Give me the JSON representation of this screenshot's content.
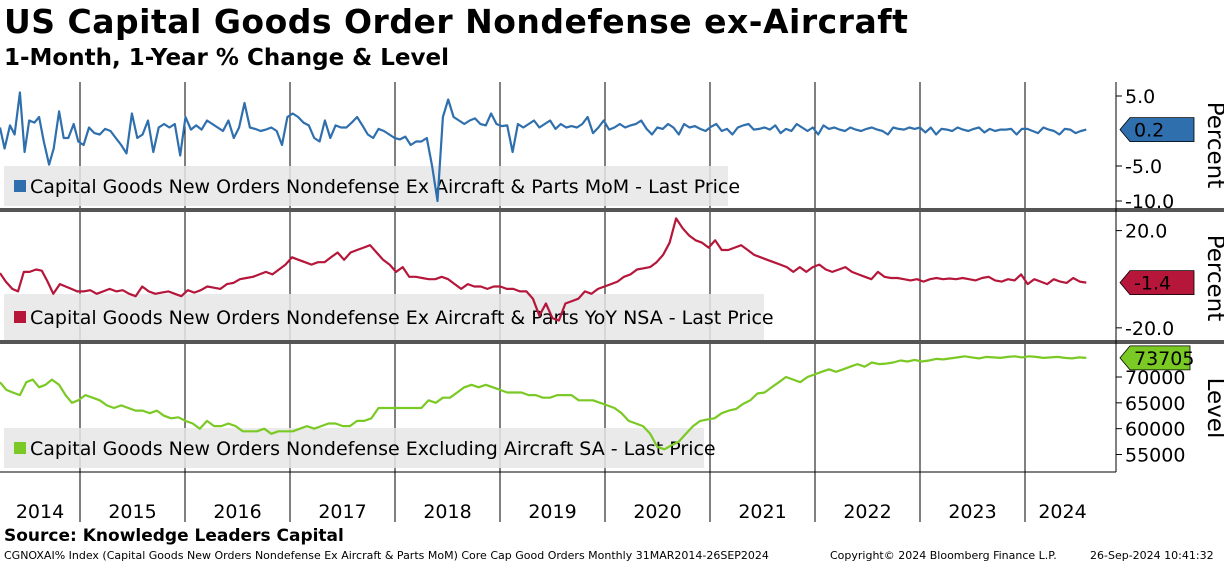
{
  "header": {
    "title": "US Capital Goods Order Nondefense ex-Aircraft",
    "subtitle": "1-Month, 1-Year % Change & Level"
  },
  "source": "Source: Knowledge Leaders Capital",
  "footer": {
    "left": "CGNOXAI% Index (Capital Goods New Orders Nondefense Ex Aircraft & Parts MoM) Core Cap Good Orders  Monthly 31MAR2014-26SEP2024",
    "middle": "Copyright© 2024 Bloomberg Finance L.P.",
    "right": "26-Sep-2024 10:41:32"
  },
  "colors": {
    "mom": "#2f6fad",
    "yoy": "#b5163a",
    "level": "#7ac924"
  },
  "chart_data": [
    {
      "type": "line",
      "name": "mom",
      "legend": "Capital Goods New Orders Nondefense Ex Aircraft & Parts MoM - Last Price",
      "ylabel": "Percent",
      "ylim": [
        -11,
        7
      ],
      "yticks": [
        "5.0",
        "-5.0",
        "-10.0"
      ],
      "ytick_values": [
        5,
        -5,
        -10
      ],
      "last_value": "0.2",
      "x_start": "2014-03",
      "x_end": "2024-08",
      "values": [
        0.5,
        -2.5,
        0.8,
        -0.5,
        5.5,
        -3.0,
        1.5,
        1.2,
        2.0,
        -1.5,
        -4.8,
        -2.5,
        2.8,
        -1.0,
        -1.0,
        1.0,
        -1.5,
        -2.0,
        0.5,
        -0.3,
        -0.5,
        0.3,
        0.0,
        -1.0,
        -2.0,
        -3.2,
        2.5,
        -1.0,
        -0.5,
        1.5,
        -3.0,
        0.5,
        1.0,
        0.5,
        1.0,
        -3.5,
        2.0,
        0.2,
        0.8,
        0.2,
        1.5,
        1.0,
        0.5,
        0.0,
        1.5,
        -1.0,
        0.5,
        4.0,
        0.5,
        0.3,
        0.0,
        0.2,
        0.5,
        0.0,
        -2.0,
        2.0,
        2.5,
        2.0,
        1.2,
        0.8,
        -1.0,
        -1.5,
        1.5,
        -1.0,
        0.8,
        0.5,
        0.5,
        1.2,
        2.0,
        0.8,
        -0.5,
        -1.0,
        0.3,
        0.0,
        -0.5,
        -1.0,
        -1.2,
        -0.8,
        -2.0,
        -1.5,
        -1.5,
        -1.0,
        -5.0,
        -10.0,
        2.0,
        4.5,
        2.0,
        1.5,
        1.0,
        1.5,
        1.8,
        1.0,
        0.8,
        2.5,
        1.0,
        0.7,
        0.8,
        -3.0,
        1.0,
        0.5,
        1.0,
        1.5,
        0.5,
        1.0,
        1.5,
        0.3,
        1.0,
        0.5,
        0.7,
        0.5,
        1.0,
        2.0,
        -0.3,
        0.5,
        1.5,
        0.2,
        0.5,
        1.0,
        0.5,
        0.8,
        1.0,
        1.5,
        0.3,
        -0.5,
        0.5,
        0.3,
        1.0,
        0.5,
        -0.5,
        1.0,
        0.5,
        0.7,
        0.3,
        0.0,
        0.6,
        1.0,
        0.0,
        0.3,
        -0.5,
        0.5,
        0.8,
        1.0,
        0.2,
        0.3,
        0.5,
        0.2,
        0.8,
        -0.3,
        0.3,
        0.0,
        1.0,
        0.5,
        0.0,
        0.5,
        -0.5,
        0.8,
        0.3,
        0.5,
        0.2,
        0.0,
        0.5,
        0.2,
        0.0,
        0.3,
        0.5,
        0.2,
        0.0,
        -0.5,
        0.5,
        0.3,
        0.2,
        0.5,
        0.3,
        0.5,
        -0.2,
        0.5,
        -0.5,
        0.3,
        0.2,
        0.0,
        0.5,
        0.2,
        0.0,
        0.3,
        0.5,
        -0.2,
        0.3,
        0.0,
        0.2,
        0.2,
        0.3,
        -0.5,
        0.3,
        0.3,
        0.0,
        -0.3,
        0.5,
        0.2,
        0.0,
        -0.5,
        0.3,
        0.2,
        -0.3,
        0.0,
        0.2
      ]
    },
    {
      "type": "line",
      "name": "yoy",
      "legend": "Capital Goods New Orders Nondefense Ex Aircraft & Parts YoY NSA - Last Price",
      "ylabel": "Percent",
      "ylim": [
        -25,
        26
      ],
      "yticks": [
        "20.0",
        "-20.0"
      ],
      "ytick_values": [
        20,
        -20
      ],
      "last_value": "-1.4",
      "x_start": "2014-03",
      "x_end": "2024-08",
      "values": [
        2.5,
        -1.0,
        -4.0,
        -5.0,
        3.0,
        3.0,
        4.0,
        3.5,
        -1.0,
        -6.0,
        -2.0,
        -3.0,
        -4.0,
        -5.0,
        -5.0,
        -4.5,
        -6.0,
        -5.0,
        -4.0,
        -5.0,
        -4.5,
        -6.0,
        -7.0,
        -3.0,
        -5.0,
        -6.0,
        -5.5,
        -5.0,
        -6.0,
        -7.0,
        -4.5,
        -5.5,
        -4.5,
        -3.0,
        -3.5,
        -4.0,
        -2.0,
        -1.5,
        0.0,
        0.5,
        1.0,
        2.0,
        3.0,
        2.0,
        4.0,
        6.0,
        9.0,
        8.0,
        7.0,
        6.0,
        7.0,
        7.0,
        9.0,
        11.0,
        8.0,
        11.0,
        12.0,
        13.0,
        14.0,
        11.0,
        8.0,
        6.0,
        3.0,
        5.0,
        1.0,
        1.0,
        0.5,
        0.0,
        0.0,
        1.0,
        0.0,
        -2.0,
        -4.0,
        -2.0,
        -3.0,
        -3.0,
        -4.0,
        -3.0,
        -3.0,
        -4.0,
        -4.0,
        -5.0,
        -5.0,
        -8.0,
        -15.0,
        -10.0,
        -16.0,
        -17.0,
        -10.0,
        -9.0,
        -8.0,
        -5.0,
        -6.0,
        -4.0,
        -3.0,
        -2.0,
        -1.0,
        1.0,
        2.0,
        4.0,
        4.5,
        5.0,
        7.0,
        10.0,
        15.0,
        25.0,
        21.0,
        18.0,
        16.0,
        15.0,
        13.0,
        16.0,
        12.0,
        12.0,
        13.0,
        14.0,
        12.0,
        10.0,
        9.0,
        8.0,
        7.0,
        6.0,
        5.0,
        3.0,
        5.0,
        3.0,
        5.0,
        6.0,
        4.0,
        3.0,
        4.0,
        5.0,
        3.0,
        2.0,
        1.0,
        0.0,
        3.0,
        1.0,
        0.5,
        0.5,
        0.0,
        -0.5,
        0.0,
        -1.0,
        0.0,
        0.5,
        0.0,
        0.3,
        0.0,
        0.5,
        0.0,
        -0.5,
        0.5,
        1.0,
        -0.5,
        -1.0,
        0.0,
        -0.5,
        2.0,
        -2.0,
        0.0,
        -1.0,
        -2.0,
        0.0,
        -1.0,
        -1.5,
        0.5,
        -1.0,
        -1.4
      ]
    },
    {
      "type": "line",
      "name": "level",
      "legend": "Capital Goods New Orders Nondefense Excluding Aircraft SA - Last Price",
      "ylabel": "Level",
      "ylim": [
        52000,
        76000
      ],
      "yticks": [
        "70000",
        "65000",
        "60000",
        "55000"
      ],
      "ytick_values": [
        70000,
        65000,
        60000,
        55000
      ],
      "last_value": "73705",
      "x_start": "2014-03",
      "x_end": "2024-08",
      "values": [
        69000,
        67500,
        67000,
        66500,
        69000,
        69500,
        68000,
        68500,
        69500,
        68500,
        66500,
        65000,
        65500,
        66500,
        66000,
        65500,
        64500,
        64000,
        64500,
        64000,
        63500,
        63500,
        63000,
        63500,
        62500,
        62000,
        62200,
        61500,
        61000,
        60000,
        61500,
        60500,
        60500,
        61000,
        60500,
        59500,
        59500,
        59500,
        60000,
        59000,
        59500,
        59500,
        59500,
        60000,
        60500,
        60000,
        60500,
        61000,
        61000,
        60500,
        60500,
        61500,
        61500,
        62000,
        64000,
        64000,
        64000,
        64000,
        64000,
        64000,
        64000,
        65500,
        65000,
        66000,
        66000,
        67000,
        68000,
        68500,
        68000,
        68500,
        68000,
        67500,
        67000,
        67000,
        67000,
        66500,
        66500,
        66000,
        66000,
        66500,
        66500,
        66500,
        65500,
        65500,
        65500,
        65000,
        64500,
        64000,
        63000,
        61500,
        61000,
        60500,
        59000,
        56500,
        56000,
        56800,
        57500,
        59000,
        60500,
        61500,
        61800,
        62000,
        63000,
        63500,
        63800,
        64800,
        65500,
        66800,
        67000,
        68000,
        69000,
        70000,
        69500,
        69000,
        70000,
        70500,
        71000,
        71500,
        71000,
        71500,
        72000,
        72500,
        72000,
        72800,
        72500,
        72600,
        72800,
        73200,
        73000,
        73300,
        73000,
        73200,
        73500,
        73400,
        73600,
        73800,
        74000,
        73800,
        73600,
        73900,
        73800,
        73700,
        73900,
        74000,
        73800,
        74000,
        73900,
        73700,
        73800,
        73900,
        73700,
        73600,
        73800,
        73705
      ]
    }
  ],
  "x_axis": {
    "labels": [
      "2014",
      "2015",
      "2016",
      "2017",
      "2018",
      "2019",
      "2020",
      "2021",
      "2022",
      "2023",
      "2024"
    ]
  }
}
